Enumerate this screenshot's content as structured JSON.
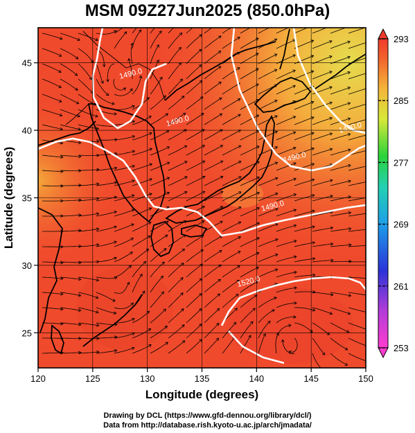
{
  "title": "MSM 09Z27Jun2025 (850.0hPa)",
  "footer": {
    "line1": "Drawing by DCL (https://www.gfd-dennou.org/library/dcl/)",
    "line2": "Data from http://database.rish.kyoto-u.ac.jp/arch/jmadata/"
  },
  "axes": {
    "xlabel": "Longitude (degrees)",
    "ylabel": "Latitude  (degrees)",
    "xlim": [
      120,
      150
    ],
    "ylim": [
      22.4,
      47.6
    ],
    "xticks": [
      "120",
      "125",
      "130",
      "135",
      "140",
      "145",
      "150"
    ],
    "yticks": [
      "25",
      "30",
      "35",
      "40",
      "45"
    ],
    "xtick_values": [
      120,
      125,
      130,
      135,
      140,
      145,
      150
    ],
    "ytick_values": [
      25,
      30,
      35,
      40,
      45
    ]
  },
  "colorbar": {
    "min": 253,
    "max": 293,
    "labels": [
      "293",
      "285",
      "277",
      "269",
      "261",
      "253"
    ],
    "label_values": [
      293,
      285,
      277,
      269,
      261,
      253
    ]
  },
  "contours": [
    {
      "label": "1490.0",
      "lon": 127.5,
      "lat": 43.8
    },
    {
      "label": "1490.0",
      "lon": 131.8,
      "lat": 40.3
    },
    {
      "label": "1490.0",
      "lon": 142.5,
      "lat": 37.6
    },
    {
      "label": "1490.0",
      "lon": 147.6,
      "lat": 39.8
    },
    {
      "label": "1490.0",
      "lon": 140.5,
      "lat": 34.0
    },
    {
      "label": "1520.0",
      "lon": 138.3,
      "lat": 28.4
    }
  ],
  "colors": {
    "field_main": "#f04a2c",
    "field_warm_ne": "#f7a23a",
    "field_yellow_ne": "#e8d84a",
    "coast": "#000000",
    "contour": "#ffffff"
  }
}
